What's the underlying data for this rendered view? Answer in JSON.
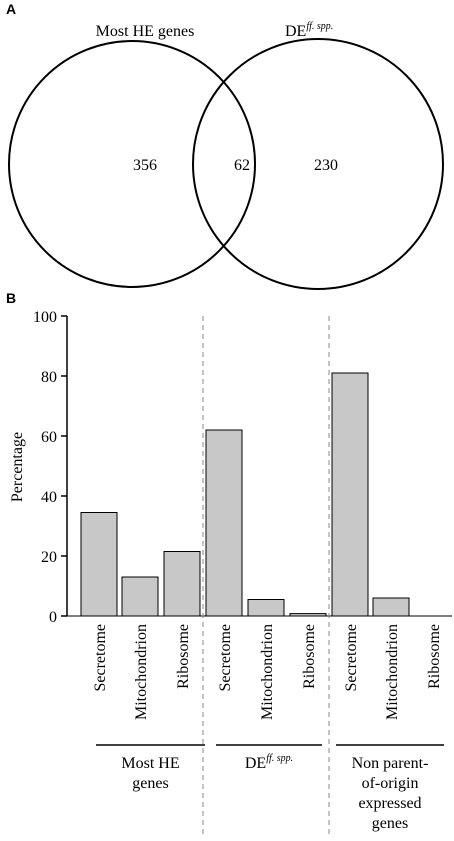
{
  "chart_data": [
    {
      "type": "venn",
      "panel_label": "A",
      "sets": [
        {
          "name": "Most HE genes",
          "label_main": "Most HE genes",
          "label_sup": "",
          "only": 356
        },
        {
          "name": "DEff. spp.",
          "label_main": "DE",
          "label_sup": "ff. spp.",
          "only": 230
        }
      ],
      "intersection": 62
    },
    {
      "type": "bar",
      "panel_label": "B",
      "ylabel": "Percentage",
      "ylim": [
        0,
        100
      ],
      "yticks": [
        0,
        20,
        40,
        60,
        80,
        100
      ],
      "grid": false,
      "legend": "none",
      "bar_color": "#c8c8c8",
      "groups": [
        {
          "name": "Most HE genes",
          "label_lines": [
            "Most HE",
            "genes"
          ],
          "categories": [
            "Secretome",
            "Mitochondrion",
            "Ribosome"
          ],
          "values": [
            34.5,
            13,
            21.5
          ]
        },
        {
          "name": "DEff. spp.",
          "label_lines": [
            "DE"
          ],
          "label_sup": "ff. spp.",
          "categories": [
            "Secretome",
            "Mitochondrion",
            "Ribosome"
          ],
          "values": [
            62,
            5.5,
            0.8
          ]
        },
        {
          "name": "Non parent-of-origin expressed genes",
          "label_lines": [
            "Non parent-",
            "of-origin",
            "expressed",
            "genes"
          ],
          "categories": [
            "Secretome",
            "Mitochondrion",
            "Ribosome"
          ],
          "values": [
            81,
            6,
            0
          ]
        }
      ]
    }
  ]
}
